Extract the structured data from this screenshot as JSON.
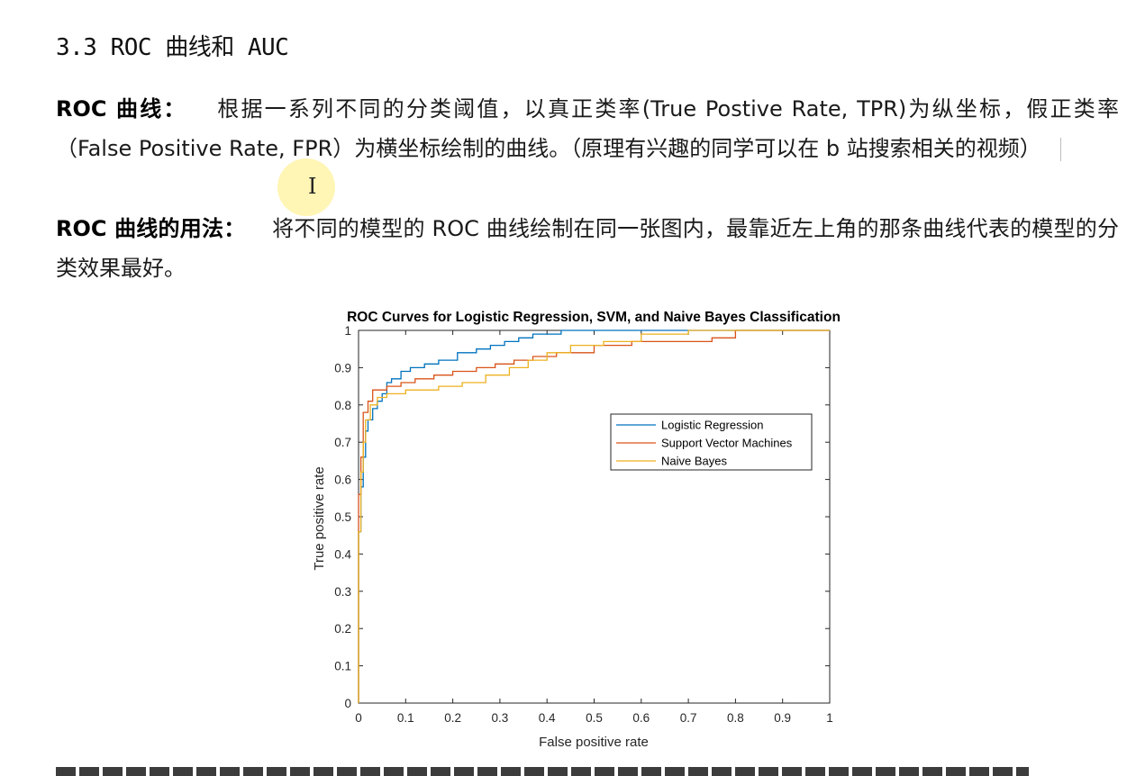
{
  "heading": "3.3 ROC 曲线和 AUC",
  "para1": {
    "label": "ROC 曲线：",
    "text": "根据一系列不同的分类阈值，以真正类率(True Postive Rate, TPR)为纵坐标，假正类率（False Positive Rate, FPR）为横坐标绘制的曲线。（原理有兴趣的同学可以在 b 站搜索相关的视频）"
  },
  "para2": {
    "label": "ROC 曲线的用法：",
    "text": "将不同的模型的 ROC 曲线绘制在同一张图内，最靠近左上角的那条曲线代表的模型的分类效果最好。"
  },
  "cursor_icon": "text-cursor-icon",
  "chart_data": {
    "type": "line",
    "title": "ROC Curves for Logistic Regression, SVM, and Naive Bayes Classification",
    "xlabel": "False positive rate",
    "ylabel": "True positive rate",
    "xlim": [
      0,
      1
    ],
    "ylim": [
      0,
      1
    ],
    "xticks": [
      0,
      0.1,
      0.2,
      0.3,
      0.4,
      0.5,
      0.6,
      0.7,
      0.8,
      0.9,
      1
    ],
    "yticks": [
      0,
      0.1,
      0.2,
      0.3,
      0.4,
      0.5,
      0.6,
      0.7,
      0.8,
      0.9,
      1
    ],
    "xtick_labels": [
      "0",
      "0.1",
      "0.2",
      "0.3",
      "0.4",
      "0.5",
      "0.6",
      "0.7",
      "0.8",
      "0.9",
      "1"
    ],
    "ytick_labels": [
      "0",
      "0.1",
      "0.2",
      "0.3",
      "0.4",
      "0.5",
      "0.6",
      "0.7",
      "0.8",
      "0.9",
      "1"
    ],
    "legend_position": "center-right",
    "grid": false,
    "series": [
      {
        "name": "Logistic Regression",
        "color": "#0072BD",
        "x": [
          0,
          0,
          0.005,
          0.005,
          0.01,
          0.01,
          0.015,
          0.015,
          0.02,
          0.02,
          0.03,
          0.03,
          0.04,
          0.04,
          0.05,
          0.05,
          0.06,
          0.06,
          0.07,
          0.07,
          0.09,
          0.09,
          0.11,
          0.11,
          0.14,
          0.14,
          0.17,
          0.17,
          0.21,
          0.21,
          0.25,
          0.25,
          0.28,
          0.28,
          0.31,
          0.31,
          0.34,
          0.34,
          0.37,
          0.37,
          0.43,
          0.43,
          0.5,
          0.5,
          0.6,
          0.8,
          1
        ],
        "y": [
          0,
          0.46,
          0.46,
          0.58,
          0.58,
          0.66,
          0.66,
          0.73,
          0.73,
          0.76,
          0.76,
          0.79,
          0.79,
          0.81,
          0.81,
          0.83,
          0.83,
          0.86,
          0.86,
          0.87,
          0.87,
          0.89,
          0.89,
          0.9,
          0.9,
          0.91,
          0.91,
          0.92,
          0.92,
          0.94,
          0.94,
          0.95,
          0.95,
          0.96,
          0.96,
          0.97,
          0.97,
          0.98,
          0.98,
          0.99,
          0.99,
          1,
          1,
          1,
          1,
          1,
          1
        ]
      },
      {
        "name": "Support Vector Machines",
        "color": "#D95319",
        "x": [
          0,
          0,
          0.005,
          0.005,
          0.01,
          0.01,
          0.02,
          0.02,
          0.03,
          0.03,
          0.06,
          0.06,
          0.09,
          0.09,
          0.12,
          0.12,
          0.16,
          0.16,
          0.2,
          0.2,
          0.25,
          0.25,
          0.29,
          0.29,
          0.33,
          0.33,
          0.37,
          0.37,
          0.42,
          0.42,
          0.5,
          0.5,
          0.58,
          0.58,
          0.75,
          0.75,
          0.8,
          0.8,
          1
        ],
        "y": [
          0,
          0.56,
          0.56,
          0.66,
          0.66,
          0.78,
          0.78,
          0.81,
          0.81,
          0.84,
          0.84,
          0.85,
          0.85,
          0.86,
          0.86,
          0.87,
          0.87,
          0.88,
          0.88,
          0.89,
          0.89,
          0.9,
          0.9,
          0.91,
          0.91,
          0.92,
          0.92,
          0.93,
          0.93,
          0.94,
          0.94,
          0.96,
          0.96,
          0.97,
          0.97,
          0.98,
          0.98,
          1,
          1
        ]
      },
      {
        "name": "Naive Bayes",
        "color": "#EDB120",
        "x": [
          0,
          0,
          0.005,
          0.005,
          0.01,
          0.01,
          0.015,
          0.015,
          0.025,
          0.025,
          0.04,
          0.04,
          0.06,
          0.06,
          0.1,
          0.1,
          0.17,
          0.17,
          0.22,
          0.22,
          0.27,
          0.27,
          0.32,
          0.32,
          0.36,
          0.36,
          0.4,
          0.4,
          0.45,
          0.45,
          0.52,
          0.52,
          0.6,
          0.6,
          0.7,
          0.7,
          0.82,
          1
        ],
        "y": [
          0,
          0.46,
          0.46,
          0.62,
          0.62,
          0.7,
          0.7,
          0.76,
          0.76,
          0.8,
          0.8,
          0.82,
          0.82,
          0.83,
          0.83,
          0.84,
          0.84,
          0.85,
          0.85,
          0.86,
          0.86,
          0.88,
          0.88,
          0.9,
          0.9,
          0.92,
          0.92,
          0.94,
          0.94,
          0.96,
          0.96,
          0.97,
          0.97,
          0.99,
          0.99,
          1,
          1,
          1
        ]
      }
    ]
  }
}
